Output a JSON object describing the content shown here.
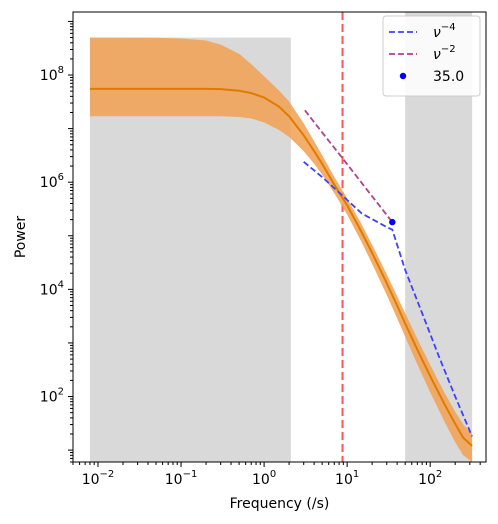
{
  "chart_data": {
    "type": "line",
    "title": "",
    "xlabel": "Frequency (/s)",
    "ylabel": "Power",
    "xscale": "log",
    "yscale": "log",
    "xlim": [
      0.005,
      470
    ],
    "ylim": [
      6,
      1500000000
    ],
    "x_ticks": [
      {
        "value": 0.01,
        "mantissa": "10",
        "exp": "−2"
      },
      {
        "value": 0.1,
        "mantissa": "10",
        "exp": "−1"
      },
      {
        "value": 1,
        "mantissa": "10",
        "exp": "0"
      },
      {
        "value": 10,
        "mantissa": "10",
        "exp": "1"
      },
      {
        "value": 100,
        "mantissa": "10",
        "exp": "2"
      }
    ],
    "y_ticks": [
      {
        "value": 100,
        "mantissa": "10",
        "exp": "2"
      },
      {
        "value": 10000,
        "mantissa": "10",
        "exp": "4"
      },
      {
        "value": 1000000,
        "mantissa": "10",
        "exp": "6"
      },
      {
        "value": 100000000,
        "mantissa": "10",
        "exp": "8"
      }
    ],
    "shaded_regions": [
      {
        "x": [
          0.008,
          2.1
        ],
        "y": [
          6,
          500000000
        ]
      },
      {
        "x": [
          50,
          320
        ],
        "y": [
          6,
          1500000000
        ]
      }
    ],
    "vertical_line": {
      "x": 8.8,
      "color": "#ff5555"
    },
    "model": {
      "x": [
        0.008,
        0.02,
        0.05,
        0.1,
        0.2,
        0.3,
        0.5,
        0.7,
        1.0,
        1.5,
        2.0,
        3.0,
        4.0,
        5.0,
        7.0,
        10.0,
        15.0,
        20.0,
        30.0,
        40.0,
        50.0,
        70.0,
        100.0,
        150.0,
        200.0,
        250.0,
        320.0
      ],
      "y": [
        55000000,
        55000000,
        55000000,
        55000000,
        55000000,
        54500000,
        51000000,
        46000000,
        38000000,
        26000000,
        17000000,
        7500000,
        3800000,
        2200000,
        900000,
        370000,
        115000,
        48000,
        13000,
        5000,
        2300,
        750,
        240,
        70,
        31,
        17,
        12
      ],
      "lower": [
        17000000,
        17000000,
        17000000,
        17000000,
        17000000,
        17000000,
        16500000,
        15500000,
        13000000,
        9500000,
        7000000,
        3800000,
        2200000,
        1400000,
        620000,
        250000,
        75000,
        30000,
        7800,
        2900,
        1300,
        400,
        120,
        33,
        14,
        8,
        6
      ],
      "upper": [
        500000000,
        500000000,
        495000000,
        480000000,
        440000000,
        370000000,
        250000000,
        160000000,
        95000000,
        52000000,
        32000000,
        12500000,
        5800000,
        3200000,
        1250000,
        500000,
        160000,
        68000,
        19000,
        7500,
        3600,
        1200,
        390,
        115,
        52,
        30,
        20
      ],
      "color": "#e07b00",
      "band_color": "#f0a050"
    },
    "series": [
      {
        "name": "ν−4",
        "label_base": "ν",
        "label_exp": "−4",
        "style": "dashed",
        "color": "#4040ff",
        "x": [
          3,
          5,
          8.8,
          15,
          30,
          35,
          50,
          80,
          130,
          200,
          320
        ],
        "y": [
          2400000,
          1250000,
          560000,
          260000,
          145000,
          130000,
          23000,
          3600,
          520,
          100,
          18
        ]
      },
      {
        "name": "ν−2",
        "label_base": "ν",
        "label_exp": "−2",
        "style": "dashed",
        "color": "#b04090",
        "x": [
          3.1,
          5,
          8.8,
          15,
          25,
          35
        ],
        "y": [
          22000000,
          8500000,
          2800000,
          960000,
          350000,
          180000
        ]
      },
      {
        "name": "35.0",
        "style": "point",
        "color": "#0000ff",
        "x": [
          35
        ],
        "y": [
          180000
        ]
      }
    ],
    "legend_position": "top-right"
  }
}
